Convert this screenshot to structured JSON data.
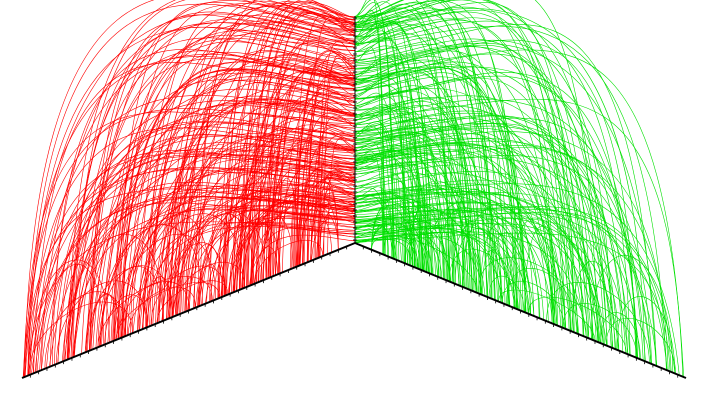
{
  "diagram": {
    "type": "hive-arc-plot",
    "title": "",
    "panels": [
      {
        "name": "left",
        "color": "#ff0000",
        "arc_count": 260
      },
      {
        "name": "right",
        "color": "#00e000",
        "arc_count": 240
      }
    ],
    "axis_color": "#000000",
    "tick_color": "#000000",
    "background": "#ffffff"
  }
}
